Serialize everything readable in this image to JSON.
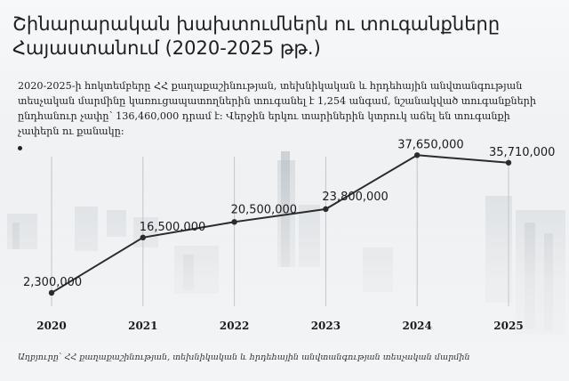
{
  "header": {
    "title": "Շինարարական խախտումներն ու տուգանքները Հայաստանում (2020-2025 թթ.)",
    "subtitle": "2020-2025-ի հոկտեմբերը ՀՀ քաղաքաշինության, տեխնիկական և հրդեհային անվտանգության տեսչական մարմինը կառուցապատողներին տուգանել է 1,254 անգամ, նշանակված տուգանքների ընդհանուր չափը՝ 136,460,000 դրամ է։ Վերջին երկու տարիներին կտրուկ աճել են տուգանքի չափերն ու քանակը։"
  },
  "footer": {
    "source": "Աղբյուրը՝ ՀՀ քաղաքաշինության, տեխնիկական և հրդեհային անվտանգության տեսչական մարմին"
  },
  "colors": {
    "line": "#2b2b2b",
    "gridline": "#c3c6c9",
    "background": "#f4f5f6"
  },
  "chart_data": {
    "type": "line",
    "title": "Շինարարական խախտումներն ու տուգանքները Հայաստանում (2020-2025 թթ.)",
    "xlabel": "",
    "ylabel": "",
    "categories": [
      "2020",
      "2021",
      "2022",
      "2023",
      "2024",
      "2025"
    ],
    "series": [
      {
        "values": [
          2300000,
          16500000,
          20500000,
          23800000,
          37650000,
          35710000
        ],
        "labels": [
          "2,300,000",
          "16,500,000",
          "20,500,000",
          "23,800,000",
          "37,650,000",
          "35,710,000"
        ]
      }
    ],
    "ylim": [
      0,
      40000000
    ],
    "grid": "vertical",
    "legend": "none"
  }
}
